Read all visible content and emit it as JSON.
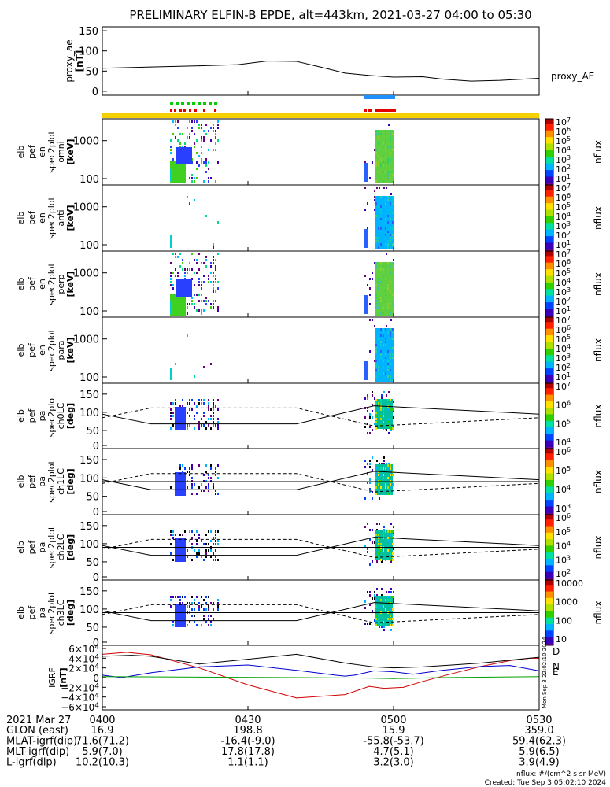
{
  "title": "PRELIMINARY ELFIN-B EPDE, alt=443km, 2021-03-27 04:00 to 05:30",
  "chart_data": [
    {
      "type": "line",
      "panel": "proxy_ae",
      "ylabel": [
        "proxy_ae",
        "[nT]"
      ],
      "yticks": [
        "150",
        "100",
        "50",
        "0"
      ],
      "ylim": [
        -10,
        160
      ],
      "legend": "proxy_AE",
      "x_minutes": [
        0,
        10,
        20,
        28,
        34,
        40,
        46,
        50,
        55,
        60,
        66,
        70,
        76,
        82,
        90
      ],
      "values": [
        57,
        60,
        63,
        66,
        75,
        74,
        57,
        45,
        39,
        35,
        36,
        30,
        25,
        27,
        32
      ]
    },
    {
      "type": "heatmap",
      "panel": "en omni",
      "ylabel": [
        "elb",
        "pef",
        "en",
        "spec2plot",
        "omni",
        "[keV]"
      ],
      "yticks": [
        "1000",
        "100"
      ],
      "colorbar_label": "nflux",
      "colorbar_ticks": [
        "10^7",
        "10^6",
        "10^5",
        "10^4",
        "10^3",
        "10^2",
        "10^1"
      ]
    },
    {
      "type": "heatmap",
      "panel": "en anti",
      "ylabel": [
        "elb",
        "pef",
        "en",
        "spec2plot",
        "anti",
        "[keV]"
      ],
      "yticks": [
        "1000",
        "100"
      ],
      "colorbar_label": "nflux",
      "colorbar_ticks": [
        "10^7",
        "10^6",
        "10^5",
        "10^4",
        "10^3",
        "10^2",
        "10^1"
      ]
    },
    {
      "type": "heatmap",
      "panel": "en perp",
      "ylabel": [
        "elb",
        "pef",
        "en",
        "spec2plot",
        "perp",
        "[keV]"
      ],
      "yticks": [
        "1000",
        "100"
      ],
      "colorbar_label": "nflux",
      "colorbar_ticks": [
        "10^7",
        "10^6",
        "10^5",
        "10^4",
        "10^3",
        "10^2",
        "10^1"
      ]
    },
    {
      "type": "heatmap",
      "panel": "en para",
      "ylabel": [
        "elb",
        "pef",
        "en",
        "spec2plot",
        "para",
        "[keV]"
      ],
      "yticks": [
        "1000",
        "100"
      ],
      "colorbar_label": "nflux",
      "colorbar_ticks": [
        "10^7",
        "10^6",
        "10^5",
        "10^4",
        "10^3",
        "10^2",
        "10^1"
      ]
    },
    {
      "type": "heatmap",
      "panel": "pa ch0LC",
      "ylabel": [
        "elb",
        "pef",
        "pa",
        "spec2plot",
        "ch0LC",
        "[deg]"
      ],
      "yticks": [
        "150",
        "100",
        "50",
        "0"
      ],
      "colorbar_label": "nflux",
      "colorbar_ticks": [
        "10^7",
        "10^6",
        "10^5",
        "10^4"
      ]
    },
    {
      "type": "heatmap",
      "panel": "pa ch1LC",
      "ylabel": [
        "elb",
        "pef",
        "pa",
        "spec2plot",
        "ch1LC",
        "[deg]"
      ],
      "yticks": [
        "150",
        "100",
        "50",
        "0"
      ],
      "colorbar_label": "nflux",
      "colorbar_ticks": [
        "10^6",
        "10^5",
        "10^4",
        "10^3"
      ]
    },
    {
      "type": "heatmap",
      "panel": "pa ch2LC",
      "ylabel": [
        "elb",
        "pef",
        "pa",
        "spec2plot",
        "ch2LC",
        "[deg]"
      ],
      "yticks": [
        "150",
        "100",
        "50",
        "0"
      ],
      "colorbar_label": "nflux",
      "colorbar_ticks": [
        "10^6",
        "10^5",
        "10^4",
        "10^3",
        "10^2"
      ]
    },
    {
      "type": "heatmap",
      "panel": "pa ch3LC",
      "ylabel": [
        "elb",
        "pef",
        "pa",
        "spec2plot",
        "ch3LC",
        "[deg]"
      ],
      "yticks": [
        "150",
        "100",
        "50",
        "0"
      ],
      "colorbar_label": "nflux",
      "colorbar_ticks": [
        "10000",
        "1000",
        "100",
        "10"
      ]
    },
    {
      "type": "line",
      "panel": "IGRF",
      "ylabel": [
        "IGRF",
        "[nT]"
      ],
      "yticks": [
        "6×10^4",
        "4×10^4",
        "2×10^4",
        "0",
        "−2×10^4",
        "−4×10^4",
        "−6×10^4"
      ],
      "ylim": [
        -60000,
        60000
      ],
      "legend": [
        "D",
        "N",
        "E"
      ],
      "series": [
        {
          "name": "D",
          "color": "#d00000",
          "x_minutes": [
            0,
            5,
            10,
            20,
            30,
            40,
            50,
            55,
            58,
            62,
            66,
            72,
            78,
            84,
            88,
            90
          ],
          "values": [
            48000,
            52000,
            47000,
            20000,
            -15000,
            -42000,
            -35000,
            -18000,
            -22000,
            -20000,
            -8000,
            8000,
            23000,
            35000,
            40000,
            40000
          ]
        },
        {
          "name": "N",
          "color": "#0000d0",
          "x_minutes": [
            0,
            4,
            10,
            20,
            30,
            40,
            48,
            50,
            52,
            56,
            60,
            64,
            70,
            78,
            84,
            90
          ],
          "values": [
            5000,
            0,
            10000,
            22000,
            26000,
            15000,
            5000,
            3000,
            5000,
            14000,
            12000,
            7000,
            15000,
            23000,
            25000,
            14000
          ]
        },
        {
          "name": "E",
          "color": "#00a000",
          "x_minutes": [
            0,
            20,
            40,
            55,
            60,
            70,
            80,
            90
          ],
          "values": [
            2000,
            1000,
            0,
            -1000,
            -2000,
            0,
            1000,
            2000
          ]
        },
        {
          "name": "",
          "color": "#000000",
          "x_minutes": [
            0,
            6,
            10,
            20,
            30,
            40,
            50,
            56,
            60,
            66,
            72,
            78,
            84,
            90
          ],
          "values": [
            44000,
            46000,
            44000,
            28000,
            38000,
            48000,
            30000,
            22000,
            20000,
            22000,
            26000,
            30000,
            36000,
            42000
          ]
        }
      ]
    }
  ],
  "igrf_side_text": "Mon Sep  3 22:02:10 2024",
  "table": {
    "header": [
      "2021 Mar 27",
      "0400",
      "0430",
      "0500",
      "0530"
    ],
    "rows": [
      {
        "label": "GLON (east)",
        "values": [
          "16.9",
          "198.8",
          "15.9",
          "359.0"
        ]
      },
      {
        "label": "MLAT-igrf(dip)",
        "values": [
          "71.6(71.2)",
          "-16.4(-9.0)",
          "-55.8(-53.7)",
          "59.4(62.3)"
        ]
      },
      {
        "label": "MLT-igrf(dip)",
        "values": [
          "5.9(7.0)",
          "17.8(17.8)",
          "4.7(5.1)",
          "5.9(6.5)"
        ]
      },
      {
        "label": "L-igrf(dip)",
        "values": [
          "10.2(10.3)",
          "1.1(1.1)",
          "3.2(3.0)",
          "3.9(4.9)"
        ]
      }
    ]
  },
  "footnote": {
    "units": "nflux: #/(cm^2 s sr MeV)",
    "created": "Created: Tue Sep  3 05:02:10 2024"
  },
  "colors": {
    "yellow_band": "#f4d000",
    "green_mark": "#00d000",
    "red_mark": "#e00000",
    "blue_mark": "#1e90ff"
  }
}
